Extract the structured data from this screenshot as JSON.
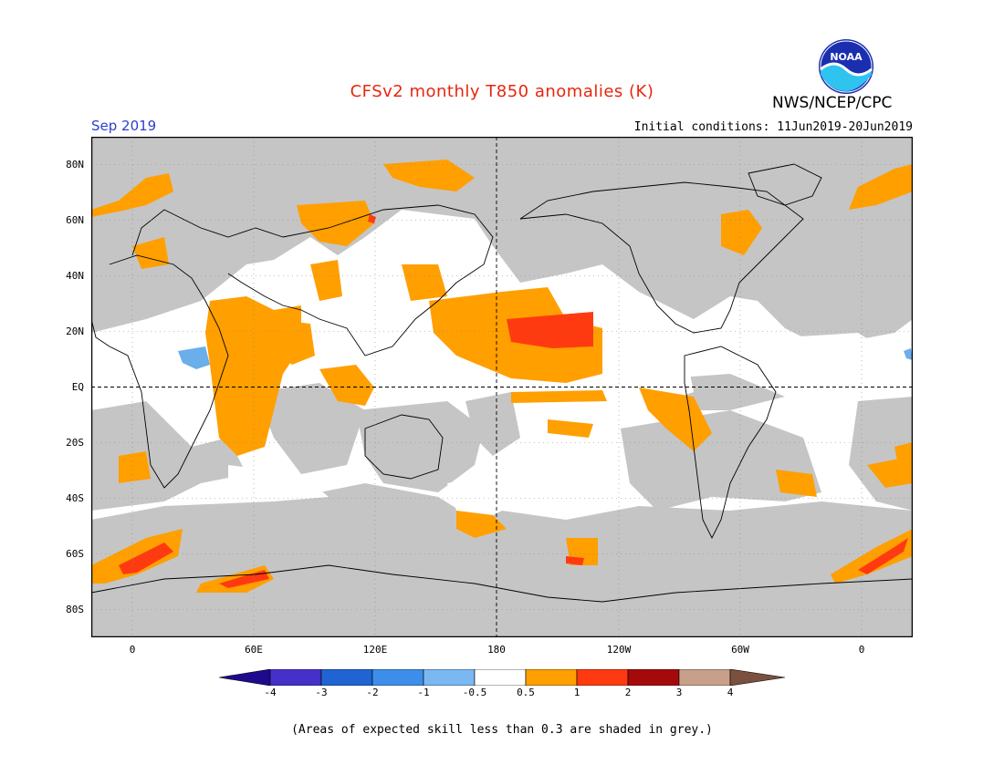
{
  "title": "CFSv2 monthly T850 anomalies (K)",
  "agency": "NWS/NCEP/CPC",
  "logo_text": "NOAA",
  "month": "Sep 2019",
  "initial_conditions": "Initial conditions: 11Jun2019-20Jun2019",
  "lat_labels": [
    "80N",
    "60N",
    "40N",
    "20N",
    "EQ",
    "20S",
    "40S",
    "60S",
    "80S"
  ],
  "lon_labels": [
    "0",
    "60E",
    "120E",
    "180",
    "120W",
    "60W",
    "0"
  ],
  "colorbar": {
    "labels": [
      "-4",
      "-3",
      "-2",
      "-1",
      "-0.5",
      "0.5",
      "1",
      "2",
      "3",
      "4"
    ],
    "colors": [
      "#1e0a8c",
      "#4530c8",
      "#1f64d2",
      "#3d8eea",
      "#7ab8f2",
      "#ffffff",
      "#ff9f00",
      "#ff3a10",
      "#a50a0a",
      "#c8a08a",
      "#7a5040"
    ]
  },
  "map_colors": {
    "grey_shading": "#c5c5c5",
    "orange": "#ff9f00",
    "red_orange": "#ff3a10",
    "light_blue": "#6aaeea"
  },
  "footnote": "(Areas of expected skill less than 0.3 are shaded in grey.)"
}
